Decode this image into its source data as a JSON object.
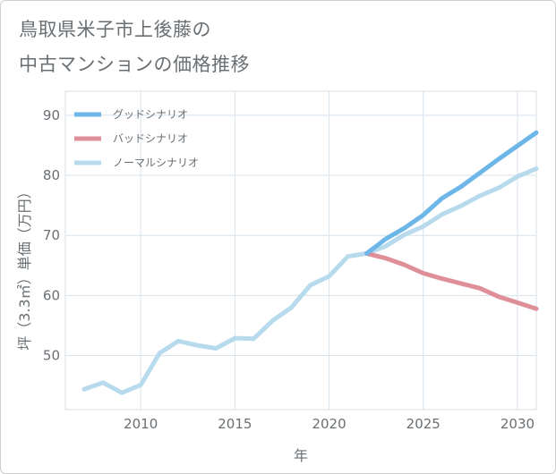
{
  "title_line1": "鳥取県米子市上後藤の",
  "title_line2": "中古マンションの価格推移",
  "chart_data": {
    "type": "line",
    "xlabel": "年",
    "ylabel": "坪（3.3㎡）単価（万円）",
    "xlim": [
      2006,
      2031
    ],
    "ylim": [
      41,
      94
    ],
    "xticks": [
      2010,
      2015,
      2020,
      2025,
      2030
    ],
    "yticks": [
      50,
      60,
      70,
      80,
      90
    ],
    "grid": true,
    "legend_position": "top-left",
    "series": [
      {
        "name": "グッドシナリオ",
        "color": "#6cb6e8",
        "x": [
          2022,
          2023,
          2024,
          2025,
          2026,
          2027,
          2028,
          2029,
          2030,
          2031
        ],
        "y": [
          67.0,
          69.4,
          71.2,
          73.4,
          76.2,
          78.1,
          80.4,
          82.7,
          84.9,
          87.1
        ]
      },
      {
        "name": "バッドシナリオ",
        "color": "#df8f98",
        "x": [
          2022,
          2023,
          2024,
          2025,
          2026,
          2027,
          2028,
          2029,
          2030,
          2031
        ],
        "y": [
          67.0,
          66.2,
          65.1,
          63.7,
          62.8,
          62.0,
          61.2,
          59.8,
          58.8,
          57.8
        ]
      },
      {
        "name": "ノーマルシナリオ",
        "color": "#b7dbed",
        "x": [
          2007,
          2008,
          2009,
          2010,
          2011,
          2012,
          2013,
          2014,
          2015,
          2016,
          2017,
          2018,
          2019,
          2020,
          2021,
          2022,
          2023,
          2024,
          2025,
          2026,
          2027,
          2028,
          2029,
          2030,
          2031
        ],
        "y": [
          44.4,
          45.5,
          43.8,
          45.1,
          50.4,
          52.4,
          51.7,
          51.2,
          52.9,
          52.8,
          55.8,
          58.0,
          61.7,
          63.2,
          66.5,
          67.0,
          68.2,
          70.1,
          71.5,
          73.5,
          74.9,
          76.6,
          77.9,
          79.8,
          81.1
        ]
      }
    ]
  }
}
